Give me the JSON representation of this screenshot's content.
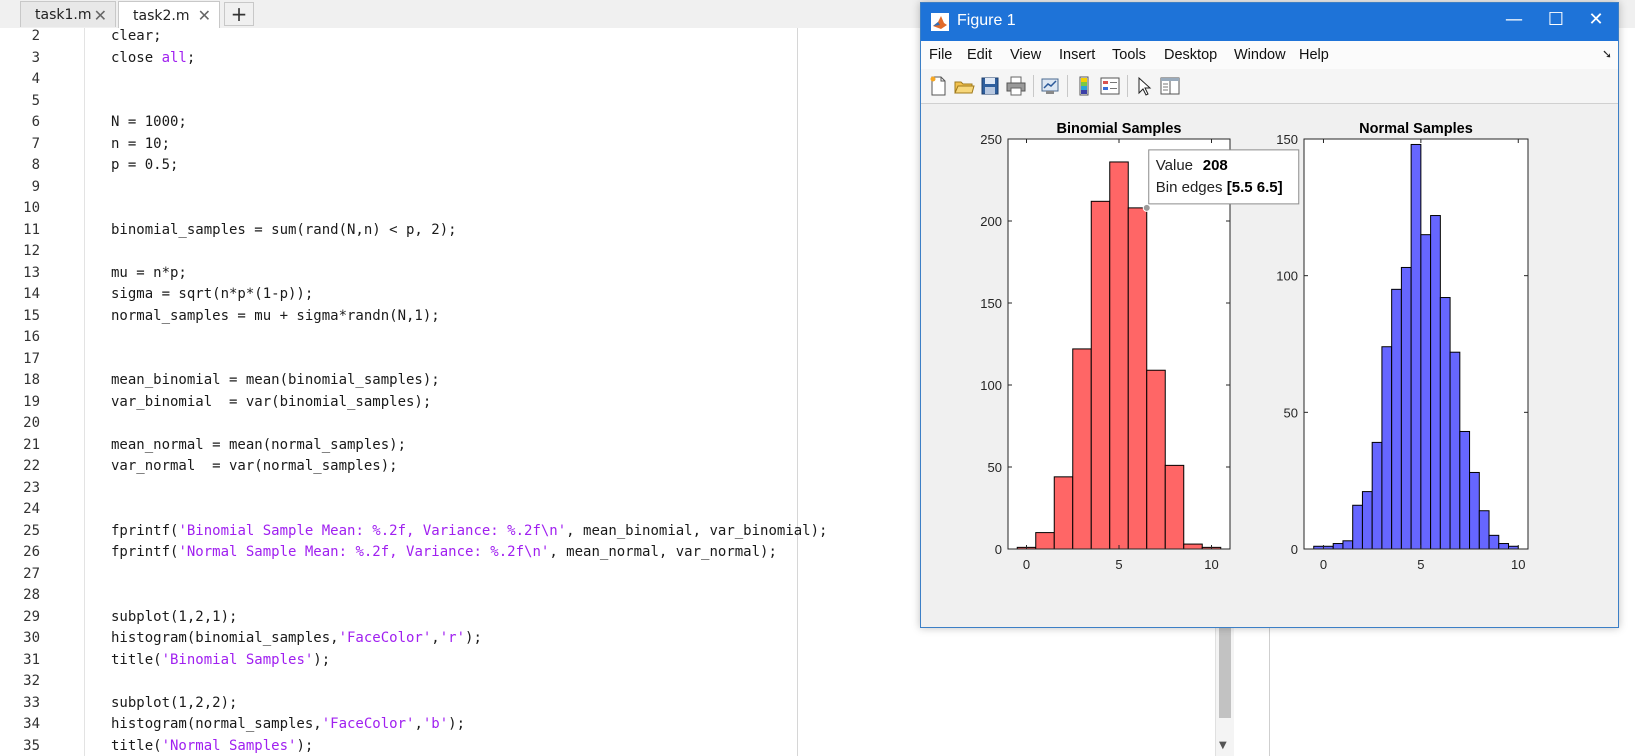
{
  "tabs": [
    {
      "label": "task1.m",
      "close": "✕"
    },
    {
      "label": "task2.m",
      "close": "✕"
    }
  ],
  "tab_add": "+",
  "editor": {
    "lines": [
      {
        "no": "2",
        "segs": [
          {
            "t": "clear;",
            "c": ""
          }
        ]
      },
      {
        "no": "3",
        "segs": [
          {
            "t": "close ",
            "c": ""
          },
          {
            "t": "all",
            "c": "kw"
          },
          {
            "t": ";",
            "c": ""
          }
        ]
      },
      {
        "no": "4",
        "segs": []
      },
      {
        "no": "5",
        "segs": []
      },
      {
        "no": "6",
        "segs": [
          {
            "t": "N = 1000;",
            "c": ""
          }
        ]
      },
      {
        "no": "7",
        "segs": [
          {
            "t": "n = 10;",
            "c": ""
          }
        ]
      },
      {
        "no": "8",
        "segs": [
          {
            "t": "p = 0.5;",
            "c": ""
          }
        ]
      },
      {
        "no": "9",
        "segs": []
      },
      {
        "no": "10",
        "segs": []
      },
      {
        "no": "11",
        "segs": [
          {
            "t": "binomial_samples = sum(rand(N,n) < p, 2);",
            "c": ""
          }
        ]
      },
      {
        "no": "12",
        "segs": []
      },
      {
        "no": "13",
        "segs": [
          {
            "t": "mu = n*p;",
            "c": ""
          }
        ]
      },
      {
        "no": "14",
        "segs": [
          {
            "t": "sigma = sqrt(n*p*(1-p));",
            "c": ""
          }
        ]
      },
      {
        "no": "15",
        "segs": [
          {
            "t": "normal_samples = mu + sigma*randn(N,1);",
            "c": ""
          }
        ]
      },
      {
        "no": "16",
        "segs": []
      },
      {
        "no": "17",
        "segs": []
      },
      {
        "no": "18",
        "segs": [
          {
            "t": "mean_binomial = mean(binomial_samples);",
            "c": ""
          }
        ]
      },
      {
        "no": "19",
        "segs": [
          {
            "t": "var_binomial  = var(binomial_samples);",
            "c": ""
          }
        ]
      },
      {
        "no": "20",
        "segs": []
      },
      {
        "no": "21",
        "segs": [
          {
            "t": "mean_normal = mean(normal_samples);",
            "c": ""
          }
        ]
      },
      {
        "no": "22",
        "segs": [
          {
            "t": "var_normal  = var(normal_samples);",
            "c": ""
          }
        ]
      },
      {
        "no": "23",
        "segs": []
      },
      {
        "no": "24",
        "segs": []
      },
      {
        "no": "25",
        "segs": [
          {
            "t": "fprintf(",
            "c": ""
          },
          {
            "t": "'Binomial Sample Mean: %.2f, Variance: %.2f\\n'",
            "c": "str"
          },
          {
            "t": ", mean_binomial, var_binomial);",
            "c": ""
          }
        ]
      },
      {
        "no": "26",
        "segs": [
          {
            "t": "fprintf(",
            "c": ""
          },
          {
            "t": "'Normal Sample Mean: %.2f, Variance: %.2f\\n'",
            "c": "str"
          },
          {
            "t": ", mean_normal, var_normal);",
            "c": ""
          }
        ]
      },
      {
        "no": "27",
        "segs": []
      },
      {
        "no": "28",
        "segs": []
      },
      {
        "no": "29",
        "segs": [
          {
            "t": "subplot(1,2,1);",
            "c": ""
          }
        ]
      },
      {
        "no": "30",
        "segs": [
          {
            "t": "histogram(binomial_samples,",
            "c": ""
          },
          {
            "t": "'FaceColor'",
            "c": "str"
          },
          {
            "t": ",",
            "c": ""
          },
          {
            "t": "'r'",
            "c": "str"
          },
          {
            "t": ");",
            "c": ""
          }
        ]
      },
      {
        "no": "31",
        "segs": [
          {
            "t": "title(",
            "c": ""
          },
          {
            "t": "'Binomial Samples'",
            "c": "str"
          },
          {
            "t": ");",
            "c": ""
          }
        ]
      },
      {
        "no": "32",
        "segs": []
      },
      {
        "no": "33",
        "segs": [
          {
            "t": "subplot(1,2,2);",
            "c": ""
          }
        ]
      },
      {
        "no": "34",
        "segs": [
          {
            "t": "histogram(normal_samples,",
            "c": ""
          },
          {
            "t": "'FaceColor'",
            "c": "str"
          },
          {
            "t": ",",
            "c": ""
          },
          {
            "t": "'b'",
            "c": "str"
          },
          {
            "t": ");",
            "c": ""
          }
        ]
      },
      {
        "no": "35",
        "segs": [
          {
            "t": "title(",
            "c": ""
          },
          {
            "t": "'Normal Samples'",
            "c": "str"
          },
          {
            "t": ");",
            "c": ""
          }
        ]
      }
    ]
  },
  "figure": {
    "title": "Figure 1",
    "window_buttons": {
      "minimize": "—",
      "maximize": "☐",
      "close": "✕"
    },
    "menus": [
      "File",
      "Edit",
      "View",
      "Insert",
      "Tools",
      "Desktop",
      "Window",
      "Help"
    ],
    "menu_arrow": "➘",
    "toolbar_icons": [
      "new-figure-icon",
      "open-file-icon",
      "save-icon",
      "print-icon",
      "link-plot-icon",
      "colorbar-icon",
      "legend-icon",
      "pointer-icon",
      "property-inspector-icon"
    ],
    "datatip": {
      "value_label": "Value",
      "value": "208",
      "edges_label": "Bin edges",
      "edges": "[5.5 6.5]"
    }
  },
  "chart_data": [
    {
      "type": "bar",
      "title": "Binomial Samples",
      "xlabel": "",
      "ylabel": "",
      "bin_edges": [
        -0.5,
        0.5,
        1.5,
        2.5,
        3.5,
        4.5,
        5.5,
        6.5,
        7.5,
        8.5,
        9.5,
        10.5
      ],
      "values": [
        1,
        10,
        44,
        122,
        212,
        236,
        208,
        109,
        51,
        3,
        1
      ],
      "xlim": [
        -1,
        11
      ],
      "ylim": [
        0,
        250
      ],
      "xticks": [
        0,
        5,
        10
      ],
      "yticks": [
        0,
        50,
        100,
        150,
        200,
        250
      ],
      "face_color": "#ff6666",
      "edge_color": "#000000"
    },
    {
      "type": "bar",
      "title": "Normal Samples",
      "xlabel": "",
      "ylabel": "",
      "bin_edges": [
        -0.5,
        0.0,
        0.5,
        1.0,
        1.5,
        2.0,
        2.5,
        3.0,
        3.5,
        4.0,
        4.5,
        5.0,
        5.5,
        6.0,
        6.5,
        7.0,
        7.5,
        8.0,
        8.5,
        9.0,
        9.5,
        10.0
      ],
      "values": [
        1,
        1,
        2,
        3,
        16,
        21,
        39,
        74,
        95,
        103,
        148,
        115,
        122,
        92,
        72,
        43,
        28,
        14,
        5,
        2,
        1
      ],
      "xlim": [
        -1,
        10.5
      ],
      "ylim": [
        0,
        150
      ],
      "xticks": [
        0,
        5,
        10
      ],
      "yticks": [
        0,
        50,
        100,
        150
      ],
      "face_color": "#6666ff",
      "edge_color": "#000000"
    }
  ]
}
